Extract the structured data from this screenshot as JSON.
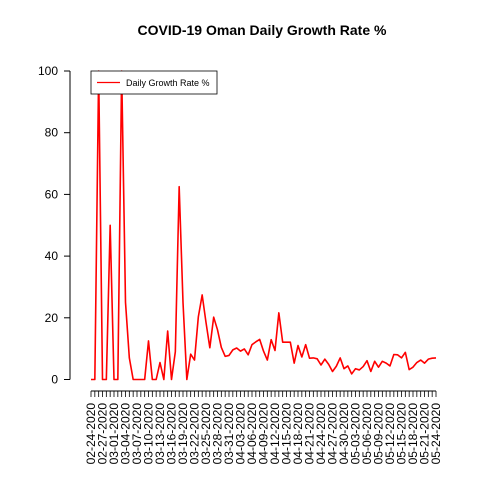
{
  "chart_data": {
    "type": "line",
    "title": "COVID-19 Oman Daily Growth Rate %",
    "xlabel": "",
    "ylabel": "",
    "ylim": [
      0,
      100
    ],
    "yticks": [
      0,
      20,
      40,
      60,
      80,
      100
    ],
    "legend": {
      "label": "Daily Growth Rate %",
      "placement": "top-left"
    },
    "color": "#ff0000",
    "series": [
      {
        "name": "Daily Growth Rate %",
        "start_date": "02-24-2020",
        "values": [
          0,
          0,
          100,
          0,
          0,
          50,
          0,
          0,
          100,
          25,
          7,
          0,
          0,
          0,
          0,
          12.5,
          0,
          0,
          5.5,
          0,
          15.7,
          0,
          9,
          62.5,
          25,
          0,
          8.2,
          6.3,
          20.3,
          27.4,
          18.5,
          10.3,
          20.2,
          16.1,
          10.4,
          7.5,
          7.8,
          9.6,
          10.2,
          9.2,
          9.9,
          8,
          11.3,
          12.2,
          13,
          9.2,
          6.3,
          12.9,
          9.4,
          21.6,
          12.1,
          12.1,
          12.1,
          5.3,
          11,
          7.3,
          11.3,
          6.9,
          7,
          6.7,
          4.7,
          6.6,
          4.9,
          2.6,
          4.3,
          7,
          3.5,
          4.4,
          1.8,
          3.5,
          3.1,
          4.2,
          6.1,
          2.6,
          5.9,
          4,
          5.9,
          5.3,
          4.4,
          8.1,
          8,
          7,
          8.8,
          3.2,
          4,
          5.5,
          6.3,
          5.3,
          6.6,
          6.9,
          7
        ]
      }
    ],
    "x_tick_labels": [
      "02-24-2020",
      "02-27-2020",
      "03-01-2020",
      "03-04-2020",
      "03-07-2020",
      "03-10-2020",
      "03-13-2020",
      "03-16-2020",
      "03-19-2020",
      "03-22-2020",
      "03-25-2020",
      "03-28-2020",
      "03-31-2020",
      "04-03-2020",
      "04-06-2020",
      "04-09-2020",
      "04-12-2020",
      "04-15-2020",
      "04-18-2020",
      "04-21-2020",
      "04-24-2020",
      "04-27-2020",
      "04-30-2020",
      "05-03-2020",
      "05-06-2020",
      "05-09-2020",
      "05-12-2020",
      "05-15-2020",
      "05-18-2020",
      "05-21-2020",
      "05-24-2020"
    ]
  }
}
